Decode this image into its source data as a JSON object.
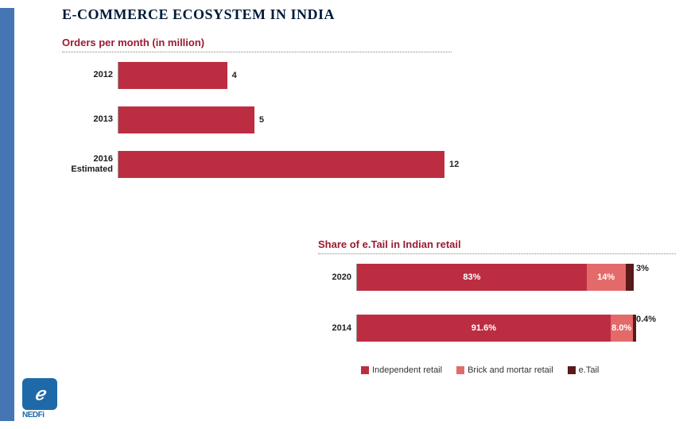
{
  "title": "E-COMMERCE ECOSYSTEM IN INDIA",
  "chart1": {
    "type": "bar-horizontal",
    "title": "Orders per month (in million)",
    "title_color": "#9b1b30",
    "bar_color": "#bd2d41",
    "xmax": 12,
    "bars": [
      {
        "label": "2012",
        "value": 4,
        "display": "4"
      },
      {
        "label": "2013",
        "value": 5,
        "display": "5"
      },
      {
        "label": "2016\nEstimated",
        "value": 12,
        "display": "12"
      }
    ]
  },
  "chart2": {
    "type": "stacked-bar-horizontal",
    "title": "Share of e.Tail in Indian retail",
    "title_color": "#9b1b30",
    "rows": [
      {
        "label": "2020",
        "segments": [
          {
            "value": 83,
            "display": "83%",
            "color": "#bd2d41"
          },
          {
            "value": 14,
            "display": "14%",
            "color": "#e46a6a"
          },
          {
            "value": 3,
            "display": "3%",
            "color": "#5a1a1a",
            "outside": true
          }
        ]
      },
      {
        "label": "2014",
        "segments": [
          {
            "value": 91.6,
            "display": "91.6%",
            "color": "#bd2d41"
          },
          {
            "value": 8.0,
            "display": "8.0%",
            "color": "#e46a6a"
          },
          {
            "value": 0.4,
            "display": "0.4%",
            "color": "#5a1a1a",
            "outside": true
          }
        ]
      }
    ],
    "legend": [
      {
        "label": "Independent retail",
        "color": "#bd2d41"
      },
      {
        "label": "Brick and mortar retail",
        "color": "#e46a6a"
      },
      {
        "label": "e.Tail",
        "color": "#5a1a1a"
      }
    ]
  },
  "logo": {
    "glyph": "ℯ",
    "text": "NEDFi"
  }
}
